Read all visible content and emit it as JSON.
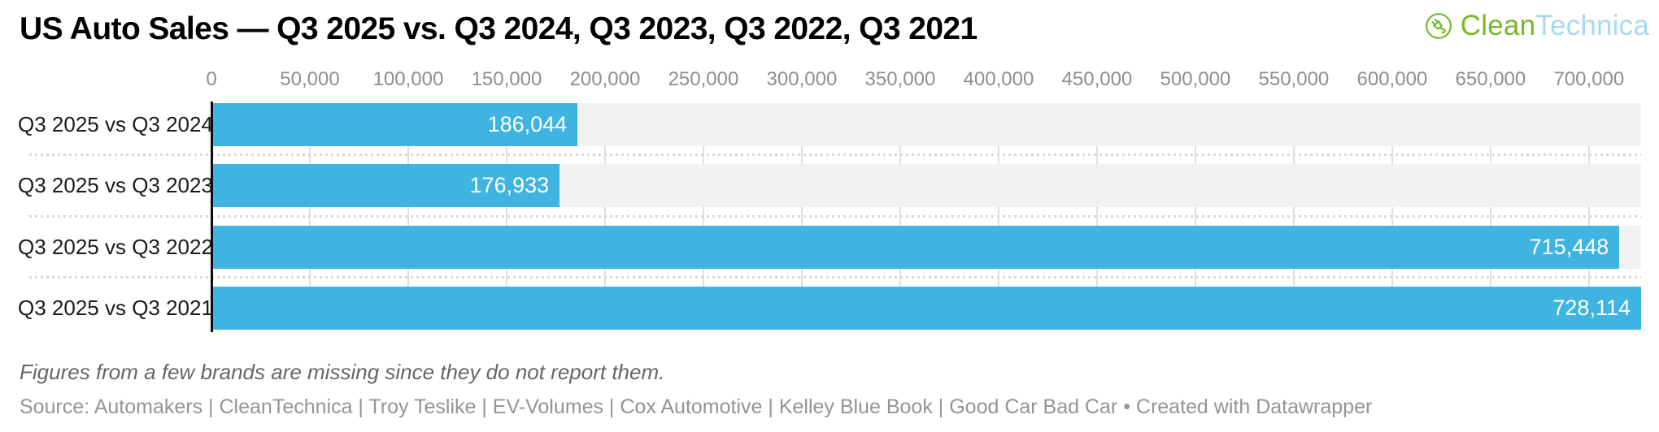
{
  "title": "US Auto Sales — Q3 2025 vs. Q3 2024, Q3 2023, Q3 2022, Q3 2021",
  "logo": {
    "icon": "cleantechnica-plug-icon",
    "text_primary": "Clean",
    "text_secondary": "Technica",
    "color_primary": "#76b82a",
    "color_secondary": "#a7d9f4"
  },
  "chart_data": {
    "type": "bar",
    "orientation": "horizontal",
    "title": "US Auto Sales — Q3 2025 vs. Q3 2024, Q3 2023, Q3 2022, Q3 2021",
    "categories": [
      "Q3 2025 vs Q3 2024",
      "Q3 2025 vs Q3 2023",
      "Q3 2025 vs Q3 2022",
      "Q3 2025 vs Q3 2021"
    ],
    "values": [
      186044,
      176933,
      715448,
      728114
    ],
    "value_labels": [
      "186,044",
      "176,933",
      "715,448",
      "728,114"
    ],
    "x_ticks": [
      0,
      50000,
      100000,
      150000,
      200000,
      250000,
      300000,
      350000,
      400000,
      450000,
      500000,
      550000,
      600000,
      650000,
      700000
    ],
    "x_tick_labels": [
      "0",
      "50,000",
      "100,000",
      "150,000",
      "200,000",
      "250,000",
      "300,000",
      "350,000",
      "400,000",
      "450,000",
      "500,000",
      "550,000",
      "600,000",
      "650,000",
      "700,000"
    ],
    "xlim": [
      0,
      726500
    ],
    "grid": true,
    "legend": "none",
    "bar_color": "#40b4e1",
    "band_color": "#f2f2f2",
    "gridline_color": "#dfdfdf",
    "value_label_color": "#ffffff"
  },
  "footnote": "Figures from a few brands are missing since they do not report them.",
  "source": "Source: Automakers | CleanTechnica | Troy Teslike | EV-Volumes | Cox Automotive | Kelley Blue Book | Good Car Bad Car • Created with Datawrapper"
}
